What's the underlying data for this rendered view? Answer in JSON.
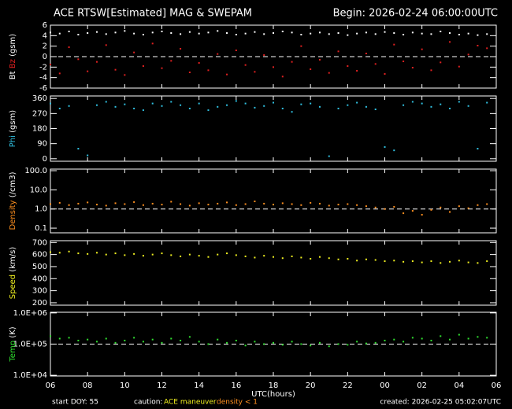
{
  "title": "ACE RTSW[Estimated] MAG & SWEPAM",
  "begin": "Begin: 2026-02-24 06:00:00UTC",
  "x_axis": {
    "label": "UTC(hours)",
    "xlim": [
      6,
      30
    ],
    "xticks": [
      {
        "value": 6,
        "label": "06"
      },
      {
        "value": 8,
        "label": "08"
      },
      10,
      12,
      14,
      16,
      18,
      20,
      22,
      {
        "value": 24,
        "label": "00"
      },
      {
        "value": 26,
        "label": "02"
      },
      {
        "value": 28,
        "label": "04"
      },
      {
        "value": 30,
        "label": "06"
      }
    ]
  },
  "footer": {
    "start": "start DOY: 55",
    "caution": "caution:",
    "maneuver": "ACE maneuver",
    "density": "density < 1",
    "created": "created: 2026-02-25 05:02:07UTC"
  },
  "chart_data": [
    {
      "type": "scatter",
      "ylabel": "(gsm)",
      "ylim": [
        -6,
        6
      ],
      "yticks": [
        -6,
        -4,
        -2,
        0,
        2,
        4,
        6
      ],
      "hline": 0,
      "x": [
        6,
        6.5,
        7,
        7.5,
        8,
        8.5,
        9,
        9.5,
        10,
        10.5,
        11,
        11.5,
        12,
        12.5,
        13,
        13.5,
        14,
        14.5,
        15,
        15.5,
        16,
        16.5,
        17,
        17.5,
        18,
        18.5,
        19,
        19.5,
        20,
        20.5,
        21,
        21.5,
        22,
        22.5,
        23,
        23.5,
        24,
        24.5,
        25,
        25.5,
        26,
        26.5,
        27,
        27.5,
        28,
        28.5,
        29,
        29.5
      ],
      "series": [
        {
          "name": "Bt",
          "color": "#ffffff",
          "values": [
            4.6,
            4.4,
            4.8,
            4.2,
            4.5,
            4.7,
            4.3,
            4.6,
            4.9,
            4.4,
            4.2,
            4.6,
            4.8,
            4.5,
            4.3,
            4.7,
            4.4,
            4.6,
            4.9,
            4.5,
            4.2,
            4.4,
            4.7,
            4.3,
            4.5,
            4.8,
            4.6,
            4.2,
            4.4,
            4.6,
            4.3,
            4.5,
            4.1,
            4.4,
            4.6,
            4.3,
            4.7,
            4.5,
            4.2,
            4.6,
            4.4,
            4.3,
            4.8,
            4.5,
            4.2,
            4.4,
            4.1,
            4.3
          ]
        },
        {
          "name": "Bz",
          "color": "#e02020",
          "values": [
            -1.5,
            -3.2,
            1.8,
            -0.5,
            -2.8,
            -1.0,
            2.2,
            -2.5,
            -3.5,
            0.8,
            -1.8,
            2.5,
            -2.2,
            -0.8,
            1.5,
            -3.0,
            -1.2,
            -2.6,
            0.5,
            -3.4,
            1.2,
            -1.6,
            -2.9,
            0.3,
            -2.0,
            -3.8,
            -1.0,
            2.0,
            -2.4,
            -0.6,
            -3.1,
            1.0,
            -1.8,
            -2.7,
            0.6,
            -1.4,
            -3.3,
            2.3,
            -0.9,
            -2.1,
            1.4,
            -2.6,
            -1.1,
            2.8,
            -1.9,
            0.4,
            2.1,
            1.6
          ]
        }
      ]
    },
    {
      "type": "scatter",
      "ylabel": "(gsm)",
      "ylim": [
        -15,
        375
      ],
      "yticks": [
        0,
        90,
        180,
        270,
        360
      ],
      "x": [
        6,
        6.5,
        7,
        7.5,
        8,
        8.5,
        9,
        9.5,
        10,
        10.5,
        11,
        11.5,
        12,
        12.5,
        13,
        13.5,
        14,
        14.5,
        15,
        15.5,
        16,
        16.5,
        17,
        17.5,
        18,
        18.5,
        19,
        19.5,
        20,
        20.5,
        21,
        21.5,
        22,
        22.5,
        23,
        23.5,
        24,
        24.5,
        25,
        25.5,
        26,
        26.5,
        27,
        27.5,
        28,
        28.5,
        29,
        29.5
      ],
      "series": [
        {
          "name": "Phi",
          "color": "#30c0e0",
          "values": [
            330,
            300,
            315,
            60,
            20,
            320,
            340,
            310,
            325,
            300,
            290,
            330,
            315,
            340,
            320,
            300,
            330,
            290,
            310,
            320,
            345,
            330,
            305,
            315,
            335,
            300,
            280,
            325,
            330,
            310,
            15,
            300,
            320,
            335,
            310,
            295,
            70,
            50,
            320,
            340,
            330,
            310,
            325,
            300,
            340,
            315,
            60,
            335
          ]
        }
      ]
    },
    {
      "type": "scatter",
      "log": true,
      "ylabel": "(/cm3)",
      "ylim": [
        0.057,
        121
      ],
      "hline": 1,
      "yticks": [
        0.1,
        {
          "value": 1,
          "label": "1.0"
        },
        {
          "value": 10,
          "label": "10.0"
        },
        {
          "value": 100,
          "label": "100.0"
        }
      ],
      "x": [
        6,
        6.5,
        7,
        7.5,
        8,
        8.5,
        9,
        9.5,
        10,
        10.5,
        11,
        11.5,
        12,
        12.5,
        13,
        13.5,
        14,
        14.5,
        15,
        15.5,
        16,
        16.5,
        17,
        17.5,
        18,
        18.5,
        19,
        19.5,
        20,
        20.5,
        21,
        21.5,
        22,
        22.5,
        23,
        23.5,
        24,
        24.5,
        25,
        25.5,
        26,
        26.5,
        27,
        27.5,
        28,
        28.5,
        29,
        29.5
      ],
      "series": [
        {
          "name": "Density",
          "color": "#ff9020",
          "values": [
            1.8,
            2.1,
            1.6,
            1.9,
            2.2,
            1.7,
            1.5,
            2.0,
            1.8,
            2.3,
            1.6,
            1.9,
            1.7,
            2.4,
            1.8,
            1.5,
            2.0,
            1.7,
            1.9,
            2.2,
            1.6,
            1.8,
            2.5,
            1.9,
            1.7,
            2.0,
            1.8,
            1.6,
            2.1,
            1.9,
            1.5,
            1.7,
            1.8,
            1.6,
            1.4,
            1.2,
            1.0,
            1.3,
            0.6,
            0.8,
            0.5,
            0.9,
            1.2,
            0.7,
            1.4,
            1.1,
            1.6,
            1.8
          ]
        }
      ]
    },
    {
      "type": "scatter",
      "ylabel": "(km/s)",
      "ylim": [
        180,
        715
      ],
      "yticks": [
        200,
        300,
        400,
        500,
        600,
        700
      ],
      "x": [
        6,
        6.5,
        7,
        7.5,
        8,
        8.5,
        9,
        9.5,
        10,
        10.5,
        11,
        11.5,
        12,
        12.5,
        13,
        13.5,
        14,
        14.5,
        15,
        15.5,
        16,
        16.5,
        17,
        17.5,
        18,
        18.5,
        19,
        19.5,
        20,
        20.5,
        21,
        21.5,
        22,
        22.5,
        23,
        23.5,
        24,
        24.5,
        25,
        25.5,
        26,
        26.5,
        27,
        27.5,
        28,
        28.5,
        29,
        29.5
      ],
      "series": [
        {
          "name": "Speed",
          "color": "#f0f020",
          "values": [
            620,
            615,
            625,
            610,
            605,
            615,
            600,
            610,
            595,
            605,
            590,
            600,
            610,
            595,
            585,
            600,
            590,
            580,
            600,
            610,
            595,
            585,
            575,
            590,
            580,
            570,
            585,
            575,
            565,
            580,
            570,
            560,
            565,
            550,
            560,
            555,
            545,
            550,
            540,
            545,
            535,
            545,
            530,
            540,
            550,
            535,
            530,
            545
          ]
        }
      ]
    },
    {
      "type": "scatter",
      "log": true,
      "ylabel": "(K)",
      "ylim": [
        9500,
        1050000
      ],
      "hline": 100000,
      "yticks": [
        {
          "value": 10000,
          "label": "1.0E+04"
        },
        {
          "value": 100000,
          "label": "1.0E+05"
        },
        {
          "value": 1000000,
          "label": "1.0E+06"
        }
      ],
      "x": [
        6,
        6.5,
        7,
        7.5,
        8,
        8.5,
        9,
        9.5,
        10,
        10.5,
        11,
        11.5,
        12,
        12.5,
        13,
        13.5,
        14,
        14.5,
        15,
        15.5,
        16,
        16.5,
        17,
        17.5,
        18,
        18.5,
        19,
        19.5,
        20,
        20.5,
        21,
        21.5,
        22,
        22.5,
        23,
        23.5,
        24,
        24.5,
        25,
        25.5,
        26,
        26.5,
        27,
        27.5,
        28,
        28.5,
        29,
        29.5
      ],
      "series": [
        {
          "name": "Temp",
          "color": "#30e030",
          "values": [
            180000,
            150000,
            160000,
            130000,
            140000,
            120000,
            150000,
            110000,
            130000,
            160000,
            120000,
            140000,
            110000,
            150000,
            130000,
            170000,
            120000,
            100000,
            140000,
            110000,
            130000,
            90000,
            120000,
            100000,
            110000,
            95000,
            120000,
            100000,
            90000,
            110000,
            85000,
            100000,
            95000,
            120000,
            105000,
            110000,
            130000,
            140000,
            120000,
            160000,
            150000,
            130000,
            180000,
            140000,
            200000,
            150000,
            170000,
            160000
          ]
        }
      ]
    }
  ]
}
